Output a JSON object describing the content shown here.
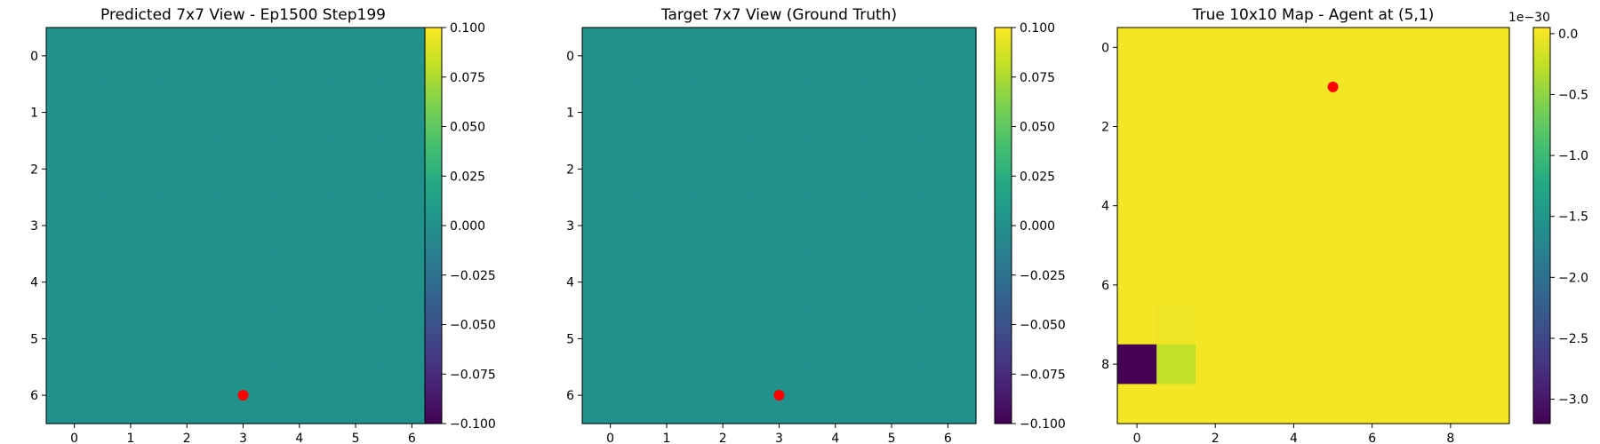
{
  "chart_data": [
    {
      "type": "heatmap",
      "title": "Predicted 7x7 View - Ep1500 Step199",
      "grid_size": 7,
      "xticks": [
        0,
        1,
        2,
        3,
        4,
        5,
        6
      ],
      "yticks": [
        0,
        1,
        2,
        3,
        4,
        5,
        6
      ],
      "values": [
        [
          0,
          0,
          0,
          0,
          0,
          0,
          0
        ],
        [
          0,
          0,
          0,
          0,
          0,
          0,
          0
        ],
        [
          0,
          0,
          0,
          0,
          0,
          0,
          0
        ],
        [
          0,
          0,
          0,
          0,
          0,
          0,
          0
        ],
        [
          0,
          0,
          0,
          0,
          0,
          0,
          0
        ],
        [
          0,
          0,
          0,
          0,
          0,
          0,
          0
        ],
        [
          0,
          0,
          0,
          0,
          0,
          0,
          0
        ]
      ],
      "marker": {
        "x": 3,
        "y": 6,
        "color": "#ff0000"
      },
      "colorbar": {
        "vmin": -0.1,
        "vmax": 0.1,
        "ticks": [
          0.1,
          0.075,
          0.05,
          0.025,
          0.0,
          -0.025,
          -0.05,
          -0.075,
          -0.1
        ],
        "tick_labels": [
          "0.100",
          "0.075",
          "0.050",
          "0.025",
          "0.000",
          "−0.025",
          "−0.050",
          "−0.075",
          "−0.100"
        ],
        "multiplier": ""
      },
      "colormap": "viridis",
      "grid": false
    },
    {
      "type": "heatmap",
      "title": "Target 7x7 View (Ground Truth)",
      "grid_size": 7,
      "xticks": [
        0,
        1,
        2,
        3,
        4,
        5,
        6
      ],
      "yticks": [
        0,
        1,
        2,
        3,
        4,
        5,
        6
      ],
      "values": [
        [
          0,
          0,
          0,
          0,
          0,
          0,
          0
        ],
        [
          0,
          0,
          0,
          0,
          0,
          0,
          0
        ],
        [
          0,
          0,
          0,
          0,
          0,
          0,
          0
        ],
        [
          0,
          0,
          0,
          0,
          0,
          0,
          0
        ],
        [
          0,
          0,
          0,
          0,
          0,
          0,
          0
        ],
        [
          0,
          0,
          0,
          0,
          0,
          0,
          0
        ],
        [
          0,
          0,
          0,
          0,
          0,
          0,
          0
        ]
      ],
      "marker": {
        "x": 3,
        "y": 6,
        "color": "#ff0000"
      },
      "colorbar": {
        "vmin": -0.1,
        "vmax": 0.1,
        "ticks": [
          0.1,
          0.075,
          0.05,
          0.025,
          0.0,
          -0.025,
          -0.05,
          -0.075,
          -0.1
        ],
        "tick_labels": [
          "0.100",
          "0.075",
          "0.050",
          "0.025",
          "0.000",
          "−0.025",
          "−0.050",
          "−0.075",
          "−0.100"
        ],
        "multiplier": ""
      },
      "colormap": "viridis",
      "grid": false
    },
    {
      "type": "heatmap",
      "title": "True 10x10 Map - Agent at (5,1)",
      "grid_size": 10,
      "xticks": [
        0,
        2,
        4,
        6,
        8
      ],
      "yticks": [
        0,
        2,
        4,
        6,
        8
      ],
      "values": [
        [
          0,
          0,
          0,
          0,
          0,
          0,
          0,
          0,
          0,
          0
        ],
        [
          0,
          0,
          0,
          0,
          0,
          0,
          0,
          0,
          0,
          0
        ],
        [
          0,
          0,
          0,
          0,
          0,
          0,
          0,
          0,
          0,
          0
        ],
        [
          0,
          0,
          0,
          0,
          0,
          0,
          0,
          0,
          0,
          0
        ],
        [
          0,
          0,
          0,
          0,
          0,
          0,
          0,
          0,
          0,
          0
        ],
        [
          0,
          0,
          0,
          0,
          0,
          0,
          0,
          0,
          0,
          0
        ],
        [
          0,
          0,
          0,
          0,
          0,
          0,
          0,
          0,
          0,
          0
        ],
        [
          0,
          -0.02,
          0,
          0,
          0,
          0,
          0,
          0,
          0,
          0
        ],
        [
          -3.2,
          -0.25,
          0,
          0,
          0,
          0,
          0,
          0,
          0,
          0
        ],
        [
          0,
          0,
          0,
          0,
          0,
          0,
          0,
          0,
          0,
          0
        ]
      ],
      "marker": {
        "x": 5,
        "y": 1,
        "color": "#ff0000"
      },
      "colorbar": {
        "vmin": -3.2,
        "vmax": 0.05,
        "ticks": [
          0.0,
          -0.5,
          -1.0,
          -1.5,
          -2.0,
          -2.5,
          -3.0
        ],
        "tick_labels": [
          "0.0",
          "−0.5",
          "−1.0",
          "−1.5",
          "−2.0",
          "−2.5",
          "−3.0"
        ],
        "multiplier": "1e−30"
      },
      "colormap": "viridis",
      "grid": false
    }
  ]
}
